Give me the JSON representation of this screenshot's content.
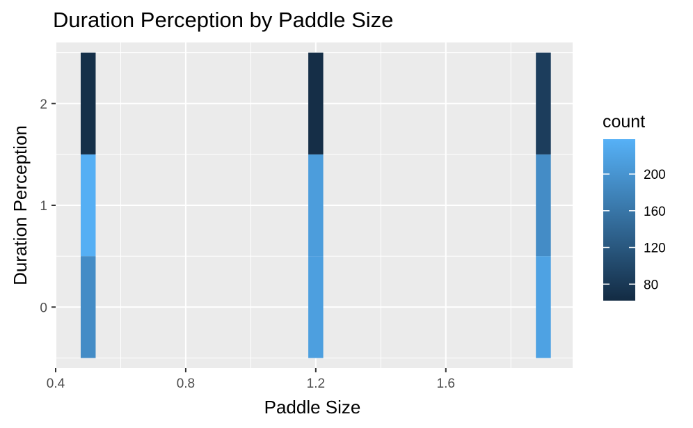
{
  "chart_data": {
    "type": "heatmap",
    "title": "Duration Perception by Paddle Size",
    "xlabel": "Paddle Size",
    "ylabel": "Duration Perception",
    "xlim": [
      0.4,
      1.99
    ],
    "ylim": [
      -0.6,
      2.6
    ],
    "x_ticks": [
      0.4,
      0.8,
      1.2,
      1.6
    ],
    "x_tick_labels": [
      "0.4",
      "0.8",
      "1.2",
      "1.6"
    ],
    "y_ticks": [
      0,
      1,
      2
    ],
    "y_tick_labels": [
      "0",
      "1",
      "2"
    ],
    "grid": true,
    "tile_width": 0.046,
    "tile_height": 1,
    "color_scale": {
      "low": "#132B43",
      "high": "#56B1F7",
      "domain": [
        62,
        238
      ]
    },
    "cells": [
      {
        "x": 0.5,
        "y": 0,
        "count": 190
      },
      {
        "x": 0.5,
        "y": 1,
        "count": 235
      },
      {
        "x": 0.5,
        "y": 2,
        "count": 68
      },
      {
        "x": 1.2,
        "y": 0,
        "count": 215
      },
      {
        "x": 1.2,
        "y": 1,
        "count": 212
      },
      {
        "x": 1.2,
        "y": 2,
        "count": 66
      },
      {
        "x": 1.9,
        "y": 0,
        "count": 218
      },
      {
        "x": 1.9,
        "y": 1,
        "count": 190
      },
      {
        "x": 1.9,
        "y": 2,
        "count": 86
      }
    ],
    "legend": {
      "title": "count",
      "position": "right",
      "breaks": [
        80,
        120,
        160,
        200
      ],
      "break_labels": [
        "80",
        "120",
        "160",
        "200"
      ]
    }
  }
}
